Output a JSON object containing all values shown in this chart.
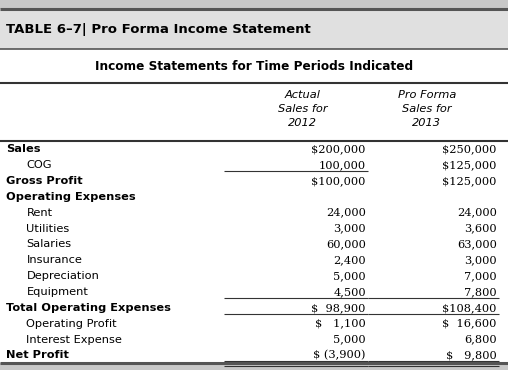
{
  "table_title": "TABLE 6–7| Pro Forma Income Statement",
  "subtitle": "Income Statements for Time Periods Indicated",
  "col_headers": [
    "",
    "Actual\nSales for\n2012",
    "Pro Forma\nSales for\n2013"
  ],
  "rows": [
    {
      "label": "Sales",
      "indent": 0,
      "col1": "$200,000",
      "col2": "$250,000",
      "underline1": false,
      "underline2": false,
      "double_underline": false
    },
    {
      "label": "COG",
      "indent": 1,
      "col1": "100,000",
      "col2": "$125,000",
      "underline1": true,
      "underline2": false,
      "double_underline": false
    },
    {
      "label": "Gross Profit",
      "indent": 0,
      "col1": "$100,000",
      "col2": "$125,000",
      "underline1": false,
      "underline2": false,
      "double_underline": false
    },
    {
      "label": "Operating Expenses",
      "indent": 0,
      "col1": "",
      "col2": "",
      "underline1": false,
      "underline2": false,
      "double_underline": false
    },
    {
      "label": "Rent",
      "indent": 1,
      "col1": "24,000",
      "col2": "24,000",
      "underline1": false,
      "underline2": false,
      "double_underline": false
    },
    {
      "label": "Utilities",
      "indent": 1,
      "col1": "3,000",
      "col2": "3,600",
      "underline1": false,
      "underline2": false,
      "double_underline": false
    },
    {
      "label": "Salaries",
      "indent": 1,
      "col1": "60,000",
      "col2": "63,000",
      "underline1": false,
      "underline2": false,
      "double_underline": false
    },
    {
      "label": "Insurance",
      "indent": 1,
      "col1": "2,400",
      "col2": "3,000",
      "underline1": false,
      "underline2": false,
      "double_underline": false
    },
    {
      "label": "Depreciation",
      "indent": 1,
      "col1": "5,000",
      "col2": "7,000",
      "underline1": false,
      "underline2": false,
      "double_underline": false
    },
    {
      "label": "Equipment",
      "indent": 1,
      "col1": "4,500",
      "col2": "7,800",
      "underline1": true,
      "underline2": true,
      "double_underline": false
    },
    {
      "label": "Total Operating Expenses",
      "indent": 0,
      "col1": "$  98,900",
      "col2": "$108,400",
      "underline1": true,
      "underline2": true,
      "double_underline": false
    },
    {
      "label": "Operating Profit",
      "indent": 1,
      "col1": "$   1,100",
      "col2": "$  16,600",
      "underline1": false,
      "underline2": false,
      "double_underline": false
    },
    {
      "label": "Interest Expense",
      "indent": 1,
      "col1": "5,000",
      "col2": "6,800",
      "underline1": false,
      "underline2": false,
      "double_underline": false
    },
    {
      "label": "Net Profit",
      "indent": 0,
      "col1": "$ (3,900)",
      "col2": "$   9,800",
      "underline1": true,
      "underline2": true,
      "double_underline": true
    }
  ],
  "title_fontsize": 9.5,
  "body_fontsize": 8.2,
  "title_bg": "#e0e0e0",
  "fig_bg": "#c8c8c8"
}
